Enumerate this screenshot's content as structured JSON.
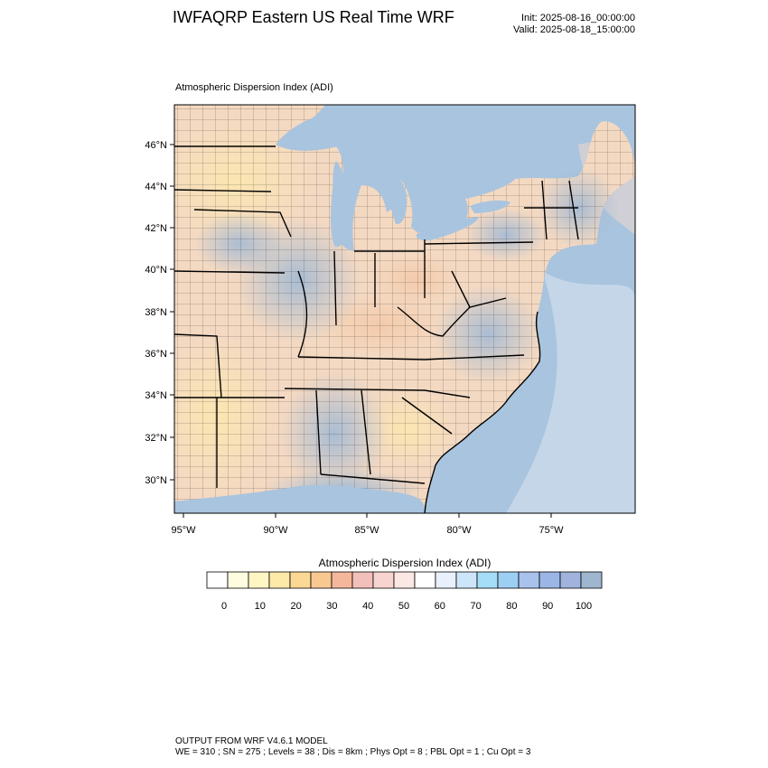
{
  "header": {
    "title": "IWFAQRP Eastern US Real Time WRF",
    "init": "Init: 2025-08-16_00:00:00",
    "valid": "Valid: 2025-08-18_15:00:00"
  },
  "plot": {
    "subtitle": "Atmospheric Dispersion Index   (ADI)",
    "lat_labels": [
      "46°N",
      "44°N",
      "42°N",
      "40°N",
      "38°N",
      "36°N",
      "34°N",
      "32°N",
      "30°N"
    ],
    "lon_labels": [
      "95°W",
      "90°W",
      "85°W",
      "80°W",
      "75°W"
    ],
    "colors": {
      "water": "#a9c4de",
      "ocean_light": "#dbe6f0",
      "land_low": "#f7dcb6",
      "land_mid": "#ecd3c7",
      "land_high": "#b8c9dc",
      "land_very_high": "#a6bbd3",
      "border": "#000000"
    }
  },
  "colorbar": {
    "title": "Atmospheric Dispersion Index  (ADI)",
    "swatches": [
      "#ffffff",
      "#fffde0",
      "#fff6c4",
      "#fde9a8",
      "#fbd894",
      "#f9c891",
      "#f5b79b",
      "#f2bfb9",
      "#f7d4d0",
      "#fbe7e4",
      "#ffffff",
      "#e8f1fb",
      "#cde5f8",
      "#a5dcf6",
      "#9dcff2",
      "#a9c2ec",
      "#9bb5e6",
      "#9fb3dc",
      "#9eb6cf"
    ],
    "tick_labels": [
      "0",
      "10",
      "20",
      "30",
      "40",
      "50",
      "60",
      "70",
      "80",
      "90",
      "100"
    ]
  },
  "footer": {
    "line1": "OUTPUT FROM WRF V4.6.1 MODEL",
    "line2": "WE = 310 ; SN = 275 ; Levels = 38 ; Dis = 8km ; Phys Opt = 8 ; PBL Opt = 1 ; Cu Opt = 3"
  }
}
